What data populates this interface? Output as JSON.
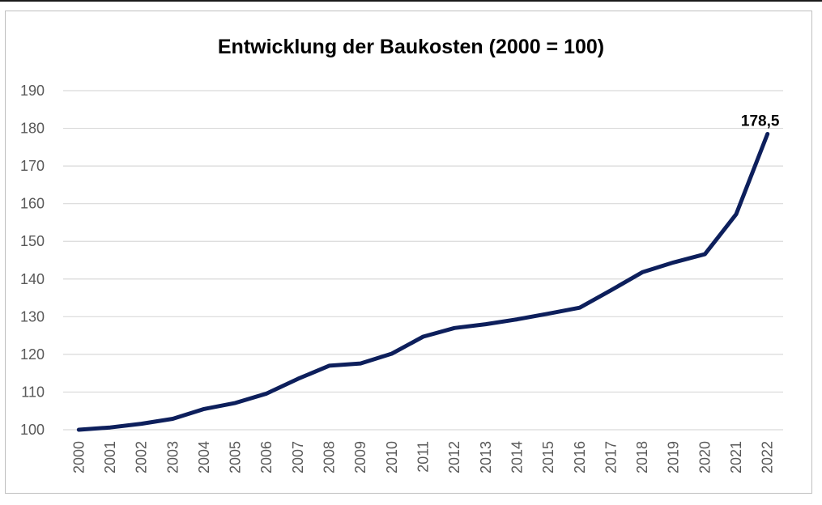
{
  "chart_data": {
    "type": "line",
    "title": "Entwicklung der Baukosten (2000 = 100)",
    "xlabel": "",
    "ylabel": "",
    "x": [
      "2000",
      "2001",
      "2002",
      "2003",
      "2004",
      "2005",
      "2006",
      "2007",
      "2008",
      "2009",
      "2010",
      "2011",
      "2012",
      "2013",
      "2014",
      "2015",
      "2016",
      "2017",
      "2018",
      "2019",
      "2020",
      "2021",
      "2022"
    ],
    "series": [
      {
        "values": [
          100.0,
          100.6,
          101.6,
          102.9,
          105.5,
          107.1,
          109.6,
          113.5,
          117.0,
          117.6,
          120.2,
          124.7,
          127.0,
          128.0,
          129.3,
          130.8,
          132.4,
          137.0,
          141.8,
          144.4,
          146.6,
          157.2,
          178.5
        ],
        "color": "#0d1f5c"
      }
    ],
    "data_labels": [
      {
        "index": 22,
        "text": "178,5"
      }
    ],
    "yticks": [
      "100",
      "110",
      "120",
      "130",
      "140",
      "150",
      "160",
      "170",
      "180",
      "190"
    ],
    "ylim": [
      100,
      190
    ],
    "grid": true,
    "legend": "none"
  }
}
